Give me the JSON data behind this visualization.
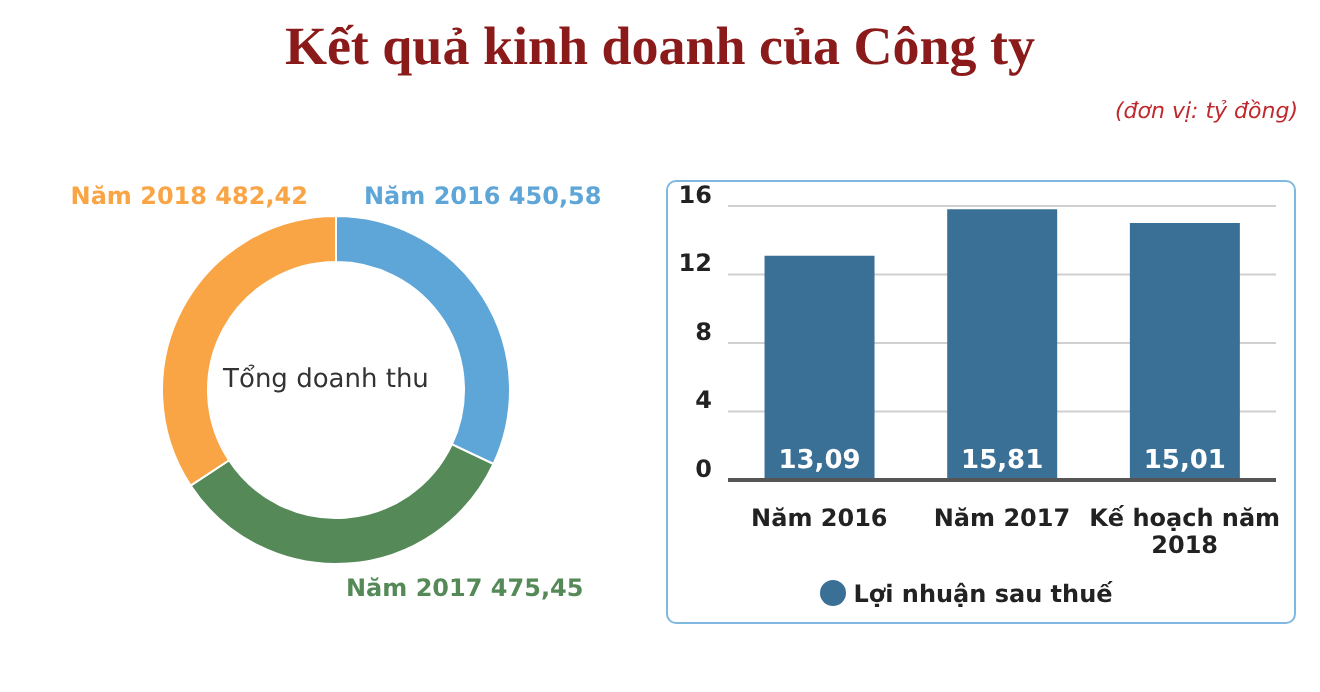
{
  "chart_data": [
    {
      "type": "donut",
      "title": "Kết quả kinh doanh của Công ty",
      "categories": [
        "Năm 2016",
        "Năm 2017",
        "Năm 2018"
      ],
      "values": [
        450.58,
        475.45,
        482.42
      ],
      "value_labels": [
        "450,58",
        "475,45",
        "482,42"
      ],
      "colors": [
        "#5ea5d8",
        "#558a58",
        "#f9a545"
      ],
      "annotations": [
        "Tổng doanh thu"
      ]
    },
    {
      "type": "bar",
      "subtitle": "(đơn vị: tỷ đồng)",
      "categories": [
        "Năm 2016",
        "Năm 2017",
        "Kế hoạch năm 2018"
      ],
      "series": [
        {
          "name": "Lợi nhuận sau thuế",
          "color": "#3a7096",
          "values": [
            13.09,
            15.81,
            15.01
          ],
          "value_labels": [
            "13,09",
            "15,81",
            "15,01"
          ]
        }
      ],
      "ylim": [
        0,
        16
      ],
      "yticks": [
        0,
        4,
        8,
        12,
        16
      ],
      "grid": "y",
      "legend": "bottom"
    }
  ]
}
